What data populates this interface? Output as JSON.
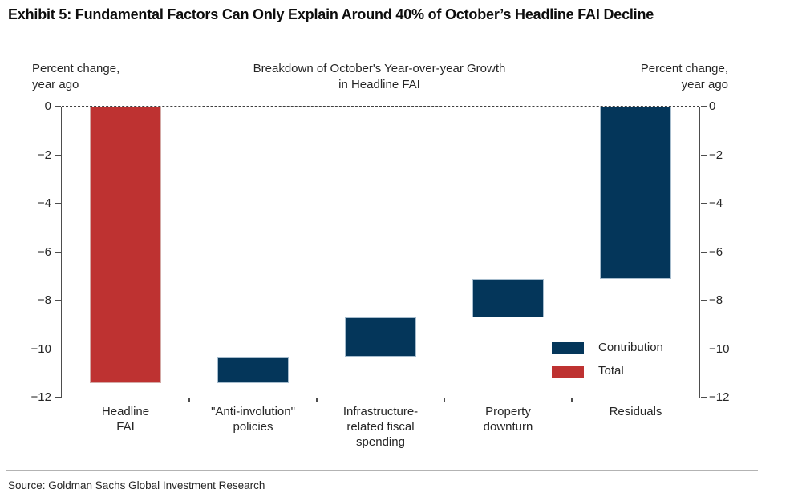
{
  "header": {
    "exhibit_title": "Exhibit 5: Fundamental Factors Can Only Explain Around 40% of October’s Headline FAI Decline"
  },
  "footer": {
    "source": "Source: Goldman Sachs Global Investment Research"
  },
  "chart_data": {
    "type": "bar",
    "subtype": "waterfall",
    "title": "Breakdown of October's Year-over-year Growth\nin Headline FAI",
    "left_axis_label": "Percent change,\nyear ago",
    "right_axis_label": "Percent change,\nyear ago",
    "ylim": [
      -12,
      0
    ],
    "y_ticks": [
      0,
      -2,
      -4,
      -6,
      -8,
      -10,
      -12
    ],
    "grid": false,
    "zero_line": "dashed",
    "categories": [
      {
        "label": "Headline\nFAI",
        "start": 0,
        "end": -11.4,
        "series": "Total"
      },
      {
        "label": "\"Anti-involution\"\npolicies",
        "start": -10.3,
        "end": -11.4,
        "series": "Contribution"
      },
      {
        "label": "Infrastructure-\nrelated fiscal\nspending",
        "start": -8.7,
        "end": -10.3,
        "series": "Contribution"
      },
      {
        "label": "Property\ndownturn",
        "start": -7.1,
        "end": -8.7,
        "series": "Contribution"
      },
      {
        "label": "Residuals",
        "start": 0,
        "end": -7.1,
        "series": "Contribution"
      }
    ],
    "legend": [
      {
        "label": "Contribution",
        "series": "Contribution"
      },
      {
        "label": "Total",
        "series": "Total"
      }
    ],
    "legend_position": "inside-lower-right",
    "colors": {
      "Contribution": "#04365a",
      "Total": "#be3231",
      "axis": "#4d4d4d",
      "text": "#262626"
    }
  }
}
